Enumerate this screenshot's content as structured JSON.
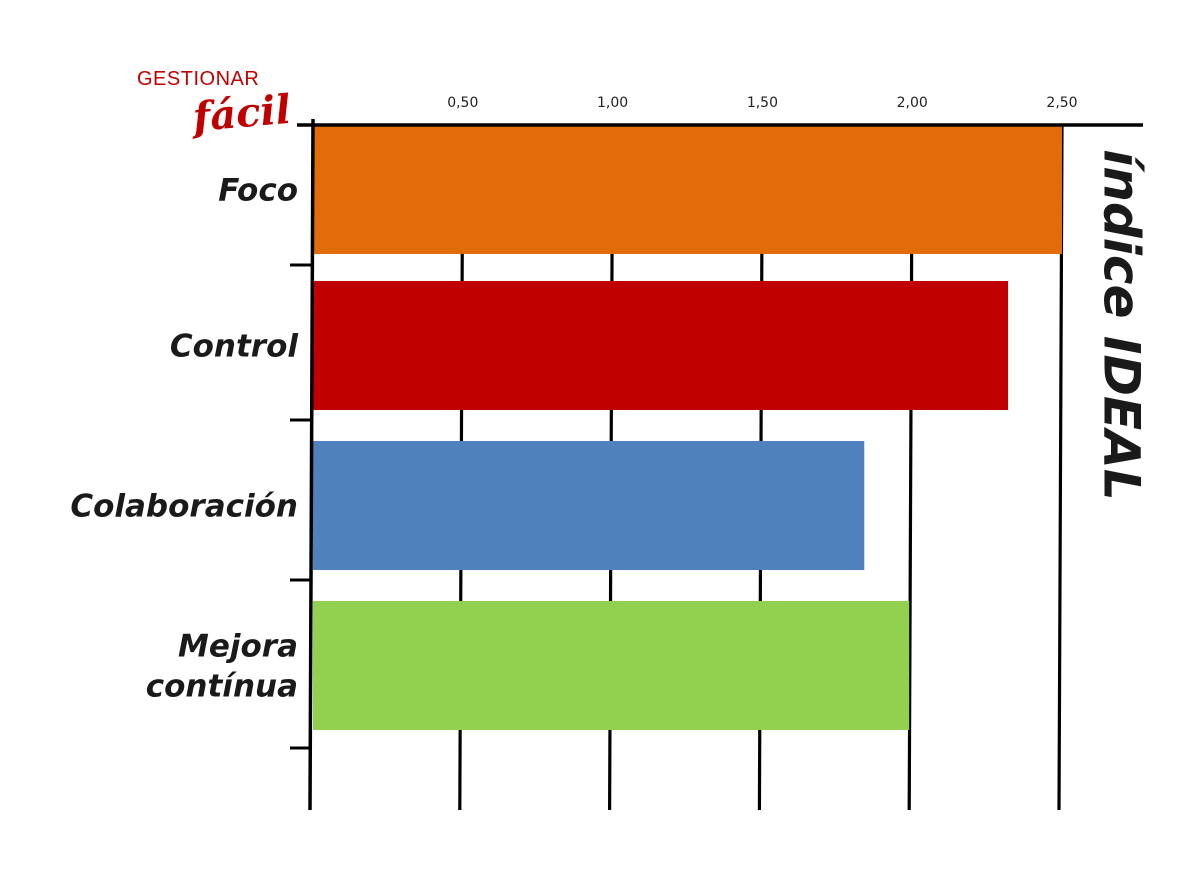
{
  "logo": {
    "line1": "GESTIONAR",
    "line2": "fácil"
  },
  "chart_data": {
    "type": "bar",
    "orientation": "horizontal",
    "categories": [
      "Foco",
      "Control",
      "Colaboración",
      "Mejora contínua"
    ],
    "category_lines": [
      [
        "Foco"
      ],
      [
        "Control"
      ],
      [
        "Colaboración"
      ],
      [
        "Mejora",
        "contínua"
      ]
    ],
    "values": [
      2.5,
      2.32,
      1.84,
      1.99
    ],
    "colors": [
      "#e36c0a",
      "#c00000",
      "#4f81bd",
      "#92d050"
    ],
    "xticks": [
      "0,50",
      "1,00",
      "1,50",
      "2,00",
      "2,50"
    ],
    "xtick_values": [
      0.5,
      1.0,
      1.5,
      2.0,
      2.5
    ],
    "xlim": [
      0,
      2.75
    ],
    "grid": true,
    "reference_label": "índice IDEAL",
    "title": "",
    "xlabel": "",
    "ylabel": ""
  }
}
